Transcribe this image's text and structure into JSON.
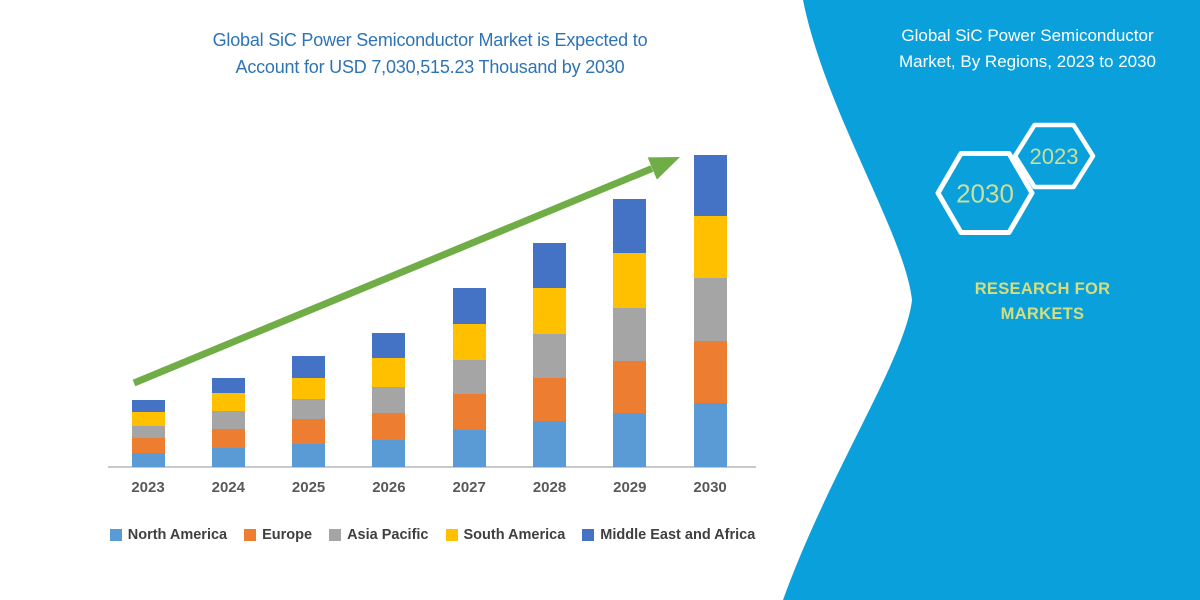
{
  "header": {
    "title_lines": [
      "Global SiC Power Semiconductor Market is Expected to",
      "Account for USD 7,030,515.23 Thousand by 2030"
    ],
    "title_color": "#2E74B5"
  },
  "side_panel": {
    "heading_lines": [
      "Global SiC Power Semiconductor",
      "Market, By Regions, 2023 to 2030"
    ],
    "hexagon_badges": [
      {
        "label": "2030"
      },
      {
        "label": "2023"
      }
    ],
    "brand_lines": [
      "RESEARCH FOR",
      "MARKETS"
    ],
    "colors": {
      "band": "#09A0DC",
      "heading_text": "#FFFFFF",
      "hexagon_outline": "#FFFFFF",
      "hexagon_label": "#C8DF9E",
      "brand_text": "#D5DE7E"
    }
  },
  "chart_data": {
    "type": "bar",
    "stacked": true,
    "title": "Global SiC Power Semiconductor Market is Expected to Account for USD 7,030,515.23 Thousand by 2030",
    "unit": "USD Thousand",
    "categories": [
      "2023",
      "2024",
      "2025",
      "2026",
      "2027",
      "2028",
      "2029",
      "2030"
    ],
    "series": [
      {
        "name": "North America",
        "color": "#5B9BD5",
        "values": [
          322500,
          435300,
          512000,
          602200,
          827800,
          1037600,
          1224800,
          1450115.23
        ]
      },
      {
        "name": "Europe",
        "color": "#ED7D31",
        "values": [
          338300,
          415000,
          563900,
          622500,
          812000,
          976700,
          1166100,
          1391700
        ]
      },
      {
        "name": "Asia Pacific",
        "color": "#A5A5A5",
        "values": [
          263900,
          412800,
          451100,
          579700,
          773700,
          992500,
          1202200,
          1427800
        ]
      },
      {
        "name": "South America",
        "color": "#FFC000",
        "values": [
          322500,
          412800,
          487200,
          647400,
          818800,
          1037600,
          1240600,
          1391700
        ]
      },
      {
        "name": "Middle East and Africa",
        "color": "#4472C4",
        "values": [
          257100,
          338300,
          489500,
          577400,
          798500,
          1001500,
          1204500,
          1369200
        ]
      }
    ],
    "totals": [
      1504300,
      2014200,
      2503700,
      3029200,
      4030800,
      5045900,
      6038200,
      7030515.23
    ],
    "ylim": [
      0,
      7030515.23
    ],
    "y_axis_visible": false,
    "gridlines": false,
    "legend_position": "bottom",
    "trend_arrow": {
      "present": true,
      "color": "#70AD47",
      "direction": "up-right"
    }
  }
}
